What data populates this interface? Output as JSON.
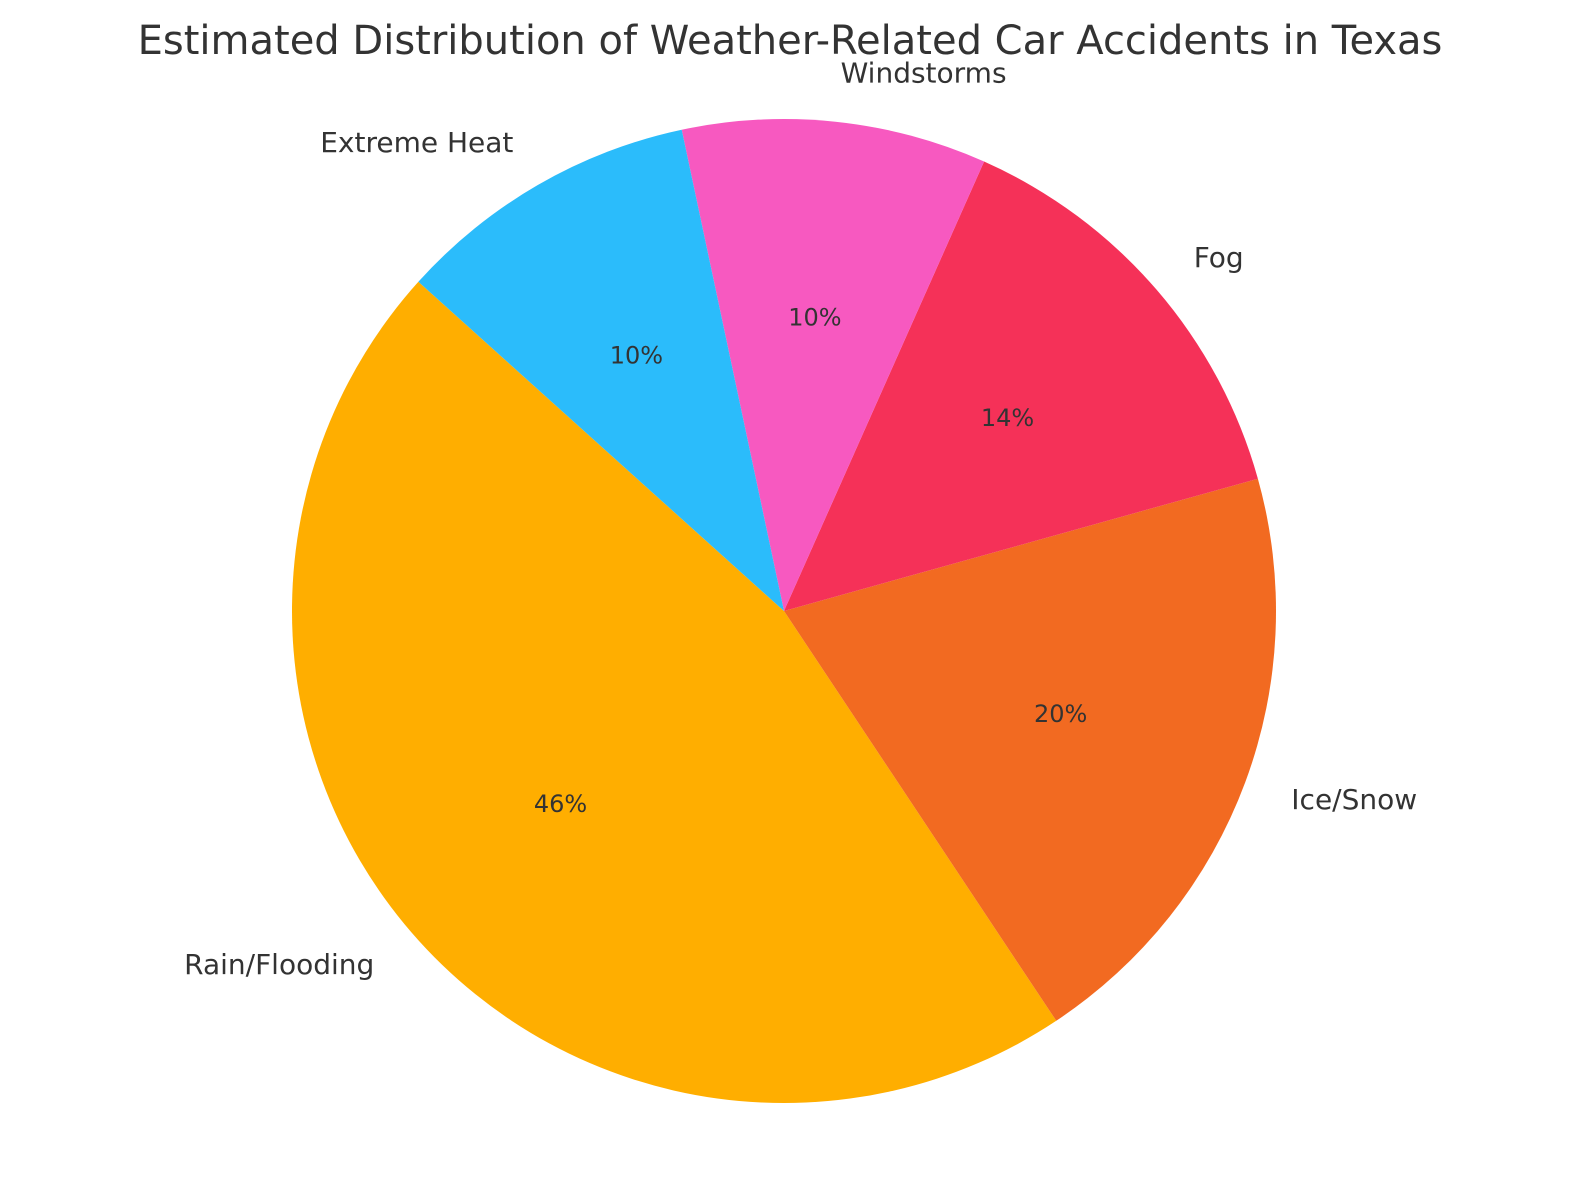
{
  "chart_data": {
    "type": "pie",
    "title": "Estimated Distribution of Weather-Related Car Accidents in Texas",
    "categories": [
      "Rain/Flooding",
      "Ice/Snow",
      "Fog",
      "Windstorms",
      "Extreme Heat"
    ],
    "values": [
      46,
      20,
      14,
      10,
      10
    ],
    "value_labels": [
      "46%",
      "20%",
      "14%",
      "10%",
      "10%"
    ],
    "colors": [
      "#FFAE00",
      "#F26A21",
      "#F53158",
      "#F759C0",
      "#2BBCFB"
    ],
    "start_angle_deg": 138,
    "direction": "counterclockwise",
    "legend": "none"
  }
}
